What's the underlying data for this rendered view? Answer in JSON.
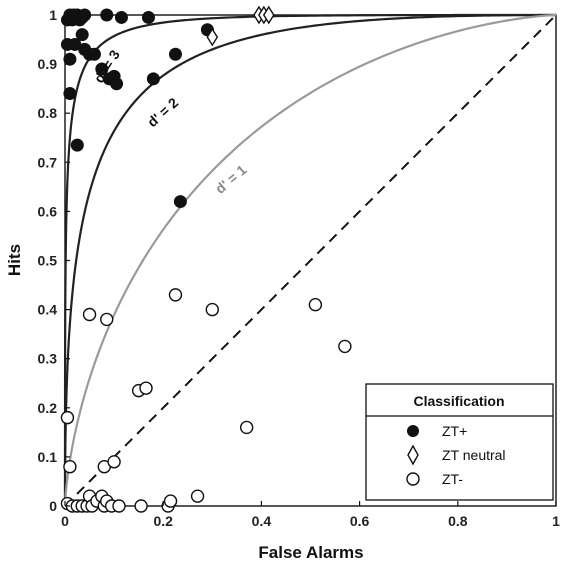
{
  "chart_data": {
    "type": "scatter",
    "xlabel": "False Alarms",
    "ylabel": "Hits",
    "xlim": [
      0,
      1
    ],
    "ylim": [
      0,
      1
    ],
    "x_ticks": [
      "0",
      "0.2",
      "0.4",
      "0.6",
      "0.8",
      "1"
    ],
    "y_ticks": [
      "0",
      "0.1",
      "0.2",
      "0.3",
      "0.4",
      "0.5",
      "0.6",
      "0.7",
      "0.8",
      "0.9",
      "1"
    ],
    "grid": false,
    "legend": {
      "title": "Classification",
      "position": "bottom-right",
      "entries": [
        "ZT+",
        "ZT neutral",
        "ZT-"
      ]
    },
    "reference_line": {
      "style": "dashed",
      "from": [
        0,
        0
      ],
      "to": [
        1,
        1
      ]
    },
    "iso_sensitivity_curves": [
      {
        "label": "d' = 3",
        "dprime": 3,
        "color": "#222222"
      },
      {
        "label": "d' = 2",
        "dprime": 2,
        "color": "#222222"
      },
      {
        "label": "d' = 1",
        "dprime": 1,
        "color": "#9a9a9a"
      }
    ],
    "series": [
      {
        "name": "ZT+",
        "marker": "filled-circle",
        "color": "#111111",
        "points": [
          [
            0.005,
            0.99
          ],
          [
            0.01,
            1.0
          ],
          [
            0.012,
            0.995
          ],
          [
            0.015,
            0.99
          ],
          [
            0.018,
            1.0
          ],
          [
            0.02,
            0.995
          ],
          [
            0.025,
            1.0
          ],
          [
            0.03,
            0.99
          ],
          [
            0.035,
            0.995
          ],
          [
            0.04,
            1.0
          ],
          [
            0.005,
            0.94
          ],
          [
            0.02,
            0.94
          ],
          [
            0.01,
            0.91
          ],
          [
            0.04,
            0.93
          ],
          [
            0.05,
            0.92
          ],
          [
            0.06,
            0.92
          ],
          [
            0.035,
            0.96
          ],
          [
            0.085,
            1.0
          ],
          [
            0.115,
            0.995
          ],
          [
            0.17,
            0.995
          ],
          [
            0.01,
            0.84
          ],
          [
            0.025,
            0.735
          ],
          [
            0.075,
            0.89
          ],
          [
            0.09,
            0.87
          ],
          [
            0.1,
            0.875
          ],
          [
            0.105,
            0.86
          ],
          [
            0.18,
            0.87
          ],
          [
            0.225,
            0.92
          ],
          [
            0.29,
            0.97
          ],
          [
            0.235,
            0.62
          ]
        ]
      },
      {
        "name": "ZT neutral",
        "marker": "open-diamond",
        "color": "#111111",
        "points": [
          [
            0.395,
            1.0
          ],
          [
            0.405,
            1.0
          ],
          [
            0.415,
            1.0
          ],
          [
            0.3,
            0.955
          ]
        ]
      },
      {
        "name": "ZT-",
        "marker": "open-circle",
        "color": "#111111",
        "points": [
          [
            0.005,
            0.005
          ],
          [
            0.015,
            0.0
          ],
          [
            0.025,
            0.0
          ],
          [
            0.035,
            0.0
          ],
          [
            0.045,
            0.0
          ],
          [
            0.05,
            0.02
          ],
          [
            0.055,
            0.0
          ],
          [
            0.065,
            0.01
          ],
          [
            0.075,
            0.02
          ],
          [
            0.08,
            0.0
          ],
          [
            0.085,
            0.01
          ],
          [
            0.095,
            0.0
          ],
          [
            0.11,
            0.0
          ],
          [
            0.155,
            0.0
          ],
          [
            0.21,
            0.0
          ],
          [
            0.215,
            0.01
          ],
          [
            0.27,
            0.02
          ],
          [
            0.01,
            0.08
          ],
          [
            0.08,
            0.08
          ],
          [
            0.1,
            0.09
          ],
          [
            0.005,
            0.18
          ],
          [
            0.05,
            0.39
          ],
          [
            0.085,
            0.38
          ],
          [
            0.225,
            0.43
          ],
          [
            0.3,
            0.4
          ],
          [
            0.51,
            0.41
          ],
          [
            0.57,
            0.325
          ],
          [
            0.15,
            0.235
          ],
          [
            0.165,
            0.24
          ],
          [
            0.37,
            0.16
          ]
        ]
      }
    ]
  }
}
